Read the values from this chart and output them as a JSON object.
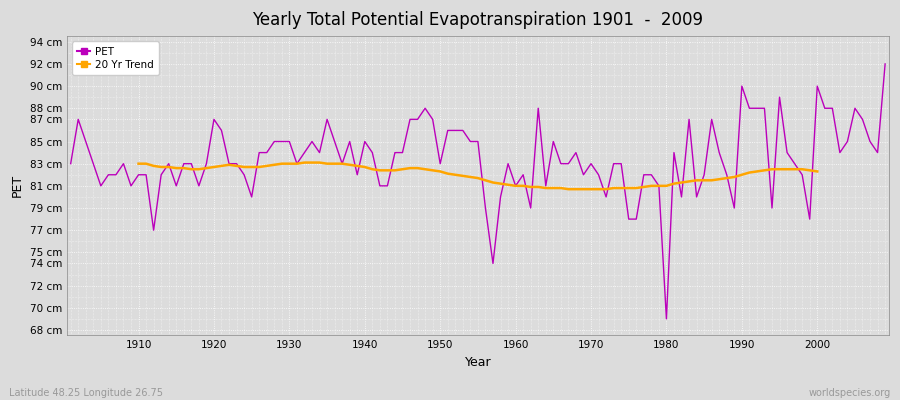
{
  "title": "Yearly Total Potential Evapotranspiration 1901  -  2009",
  "xlabel": "Year",
  "ylabel": "PET",
  "bottom_left_label": "Latitude 48.25 Longitude 26.75",
  "bottom_right_label": "worldspecies.org",
  "pet_color": "#BB00BB",
  "trend_color": "#FFA500",
  "background_color": "#DCDCDC",
  "grid_color": "#FFFFFF",
  "years": [
    1901,
    1902,
    1903,
    1904,
    1905,
    1906,
    1907,
    1908,
    1909,
    1910,
    1911,
    1912,
    1913,
    1914,
    1915,
    1916,
    1917,
    1918,
    1919,
    1920,
    1921,
    1922,
    1923,
    1924,
    1925,
    1926,
    1927,
    1928,
    1929,
    1930,
    1931,
    1932,
    1933,
    1934,
    1935,
    1936,
    1937,
    1938,
    1939,
    1940,
    1941,
    1942,
    1943,
    1944,
    1945,
    1946,
    1947,
    1948,
    1949,
    1950,
    1951,
    1952,
    1953,
    1954,
    1955,
    1956,
    1957,
    1958,
    1959,
    1960,
    1961,
    1962,
    1963,
    1964,
    1965,
    1966,
    1967,
    1968,
    1969,
    1970,
    1971,
    1972,
    1973,
    1974,
    1975,
    1976,
    1977,
    1978,
    1979,
    1980,
    1981,
    1982,
    1983,
    1984,
    1985,
    1986,
    1987,
    1988,
    1989,
    1990,
    1991,
    1992,
    1993,
    1994,
    1995,
    1996,
    1997,
    1998,
    1999,
    2000,
    2001,
    2002,
    2003,
    2004,
    2005,
    2006,
    2007,
    2008,
    2009
  ],
  "pet_values": [
    83,
    87,
    85,
    83,
    81,
    82,
    82,
    83,
    81,
    82,
    82,
    77,
    82,
    83,
    81,
    83,
    83,
    81,
    83,
    87,
    86,
    83,
    83,
    82,
    80,
    84,
    84,
    85,
    85,
    85,
    83,
    84,
    85,
    84,
    87,
    85,
    83,
    85,
    82,
    85,
    84,
    81,
    81,
    84,
    84,
    87,
    87,
    88,
    87,
    83,
    86,
    86,
    86,
    85,
    85,
    79,
    74,
    80,
    83,
    81,
    82,
    79,
    88,
    81,
    85,
    83,
    83,
    84,
    82,
    83,
    82,
    80,
    83,
    83,
    78,
    78,
    82,
    82,
    81,
    69,
    84,
    80,
    87,
    80,
    82,
    87,
    84,
    82,
    79,
    90,
    88,
    88,
    88,
    79,
    89,
    84,
    83,
    82,
    78,
    90,
    88,
    88,
    84,
    85,
    88,
    87,
    85,
    84,
    92
  ],
  "trend_years": [
    1910,
    1911,
    1912,
    1913,
    1914,
    1915,
    1916,
    1917,
    1918,
    1919,
    1920,
    1921,
    1922,
    1923,
    1924,
    1925,
    1926,
    1927,
    1928,
    1929,
    1930,
    1931,
    1932,
    1933,
    1934,
    1935,
    1936,
    1937,
    1938,
    1939,
    1940,
    1941,
    1942,
    1943,
    1944,
    1945,
    1946,
    1947,
    1948,
    1949,
    1950,
    1951,
    1952,
    1953,
    1954,
    1955,
    1956,
    1957,
    1958,
    1959,
    1960,
    1961,
    1962,
    1963,
    1964,
    1965,
    1966,
    1967,
    1968,
    1969,
    1970,
    1971,
    1972,
    1973,
    1974,
    1975,
    1976,
    1977,
    1978,
    1979,
    1980,
    1981,
    1982,
    1983,
    1984,
    1985,
    1986,
    1987,
    1988,
    1989,
    1990,
    1991,
    1992,
    1993,
    1994,
    1995,
    1996,
    1997,
    1998,
    1999,
    2000
  ],
  "trend_values": [
    83.0,
    83.0,
    82.8,
    82.7,
    82.7,
    82.6,
    82.6,
    82.5,
    82.5,
    82.6,
    82.7,
    82.8,
    82.9,
    82.8,
    82.7,
    82.7,
    82.7,
    82.8,
    82.9,
    83.0,
    83.0,
    83.0,
    83.1,
    83.1,
    83.1,
    83.0,
    83.0,
    83.0,
    82.9,
    82.8,
    82.7,
    82.5,
    82.4,
    82.4,
    82.4,
    82.5,
    82.6,
    82.6,
    82.5,
    82.4,
    82.3,
    82.1,
    82.0,
    81.9,
    81.8,
    81.7,
    81.5,
    81.3,
    81.2,
    81.1,
    81.0,
    81.0,
    80.9,
    80.9,
    80.8,
    80.8,
    80.8,
    80.7,
    80.7,
    80.7,
    80.7,
    80.7,
    80.7,
    80.8,
    80.8,
    80.8,
    80.8,
    80.9,
    81.0,
    81.0,
    81.0,
    81.2,
    81.3,
    81.4,
    81.5,
    81.5,
    81.5,
    81.6,
    81.7,
    81.8,
    82.0,
    82.2,
    82.3,
    82.4,
    82.5,
    82.5,
    82.5,
    82.5,
    82.5,
    82.4,
    82.3
  ],
  "yticks": [
    68,
    70,
    72,
    74,
    75,
    77,
    79,
    81,
    83,
    85,
    87,
    88,
    90,
    92,
    94
  ],
  "ylim": [
    67.5,
    94.5
  ],
  "xlim": [
    1900.5,
    2009.5
  ],
  "xticks": [
    1910,
    1920,
    1930,
    1940,
    1950,
    1960,
    1970,
    1980,
    1990,
    2000
  ],
  "figsize": [
    9.0,
    4.0
  ],
  "dpi": 100
}
